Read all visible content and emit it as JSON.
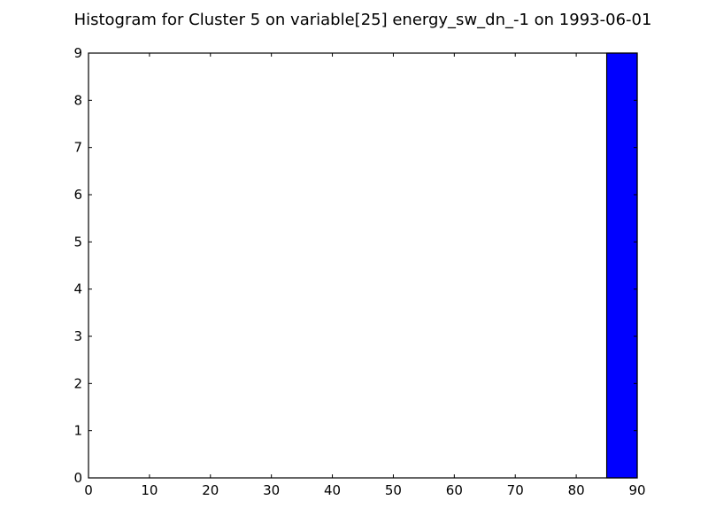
{
  "chart_data": {
    "type": "bar",
    "title": "Histogram for Cluster 5 on variable[25] energy_sw_dn_-1 on 1993-06-01",
    "xlabel": "",
    "ylabel": "",
    "xlim": [
      0,
      90
    ],
    "ylim": [
      0,
      9
    ],
    "x_ticks": [
      "0",
      "10",
      "20",
      "30",
      "40",
      "50",
      "60",
      "70",
      "80",
      "90"
    ],
    "y_ticks": [
      "0",
      "1",
      "2",
      "3",
      "4",
      "5",
      "6",
      "7",
      "8",
      "9"
    ],
    "bins": [
      {
        "start": 0,
        "end": 5,
        "count": 0
      },
      {
        "start": 85,
        "end": 90,
        "count": 9
      }
    ],
    "bar_color": "#0000ff",
    "grid": false
  }
}
